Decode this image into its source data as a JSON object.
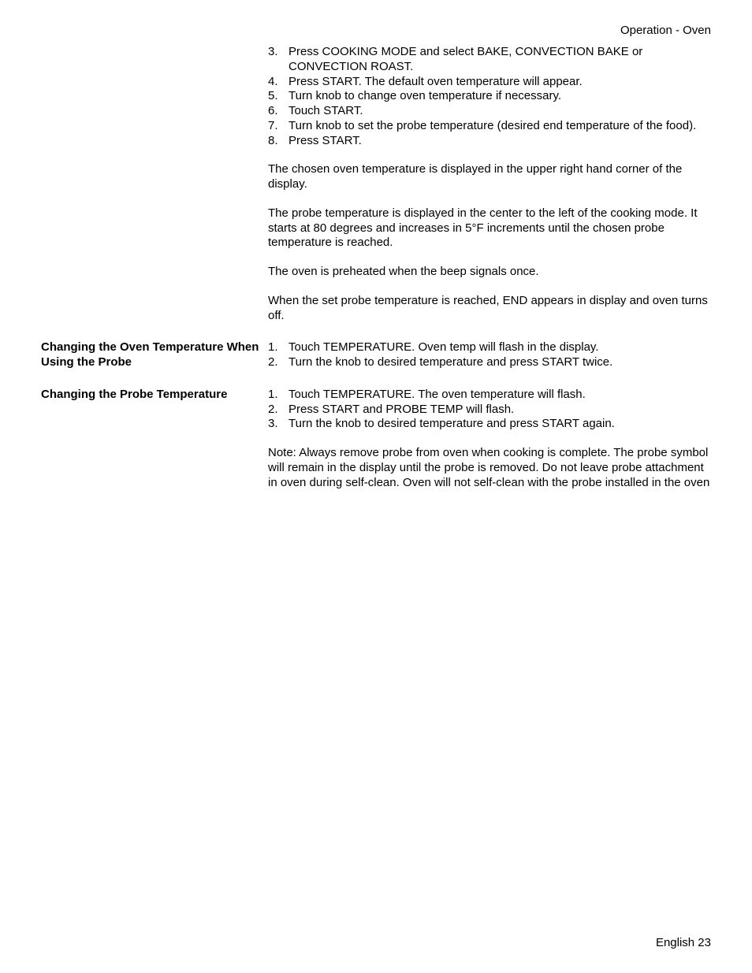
{
  "header": {
    "title": "Operation - Oven"
  },
  "section1": {
    "steps": [
      {
        "n": "3.",
        "t": "Press COOKING MODE and select BAKE, CONVECTION BAKE or CONVECTION ROAST."
      },
      {
        "n": "4.",
        "t": "Press START. The default oven temperature will appear."
      },
      {
        "n": "5.",
        "t": "Turn knob to change oven temperature if necessary."
      },
      {
        "n": "6.",
        "t": "Touch START."
      },
      {
        "n": "7.",
        "t": "Turn knob to set the probe temperature (desired end temperature of the food)."
      },
      {
        "n": "8.",
        "t": "Press START."
      }
    ],
    "p1": "The chosen oven temperature is displayed in the upper right hand corner of the display.",
    "p2": "The probe temperature is displayed in the center to the left of the cooking mode. It starts at 80 degrees and increases in 5°F increments until the chosen probe temperature is reached.",
    "p3": "The oven is preheated when the beep signals once.",
    "p4": "When the set probe temperature is reached, END appears in display and oven turns off."
  },
  "section2": {
    "heading": "Changing the Oven Temperature When Using the Probe",
    "steps": [
      {
        "n": "1.",
        "t": "Touch TEMPERATURE. Oven temp will flash in the display."
      },
      {
        "n": "2.",
        "t": "Turn the knob to desired temperature and press START twice."
      }
    ]
  },
  "section3": {
    "heading": "Changing the Probe Temperature",
    "steps": [
      {
        "n": "1.",
        "t": "Touch TEMPERATURE. The oven temperature will flash."
      },
      {
        "n": "2.",
        "t": "Press START and PROBE TEMP will flash."
      },
      {
        "n": "3.",
        "t": "Turn the knob to desired temperature and press START again."
      }
    ],
    "note": "Note:   Always remove probe from oven when cooking is complete. The probe symbol will remain in the display until the probe is removed. Do not leave probe attachment in oven during self-clean. Oven will not self-clean with the probe installed in the oven"
  },
  "footer": {
    "text": "English 23"
  }
}
